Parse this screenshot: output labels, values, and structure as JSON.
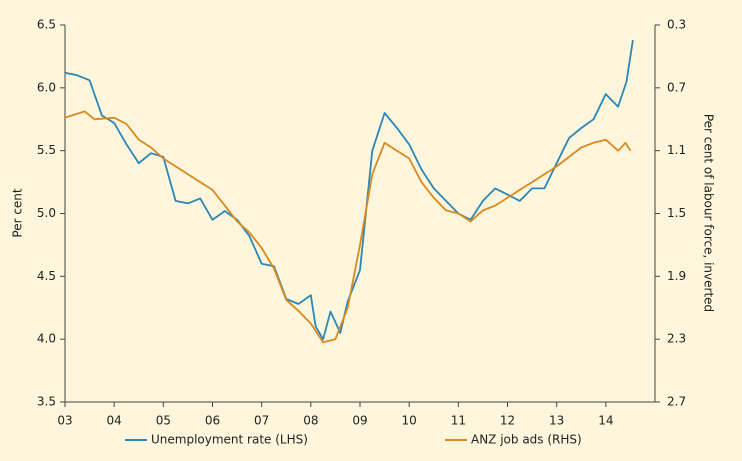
{
  "chart_data": {
    "type": "line",
    "y_label": "Per cent",
    "y2_label": "Per cent of labour force, inverted",
    "xlim": [
      2003,
      2015
    ],
    "xticks": [
      {
        "value": 2003,
        "label": "03"
      },
      {
        "value": 2004,
        "label": "04"
      },
      {
        "value": 2005,
        "label": "05"
      },
      {
        "value": 2006,
        "label": "06"
      },
      {
        "value": 2007,
        "label": "07"
      },
      {
        "value": 2008,
        "label": "08"
      },
      {
        "value": 2009,
        "label": "09"
      },
      {
        "value": 2010,
        "label": "10"
      },
      {
        "value": 2011,
        "label": "11"
      },
      {
        "value": 2012,
        "label": "12"
      },
      {
        "value": 2013,
        "label": "13"
      },
      {
        "value": 2014,
        "label": "14"
      }
    ],
    "ylim": [
      3.5,
      6.5
    ],
    "yticks": [
      3.5,
      {
        "value": 4,
        "label": "4.0"
      },
      4.5,
      {
        "value": 5,
        "label": "5.0"
      },
      5.5,
      {
        "value": 6,
        "label": "6.0"
      },
      6.5
    ],
    "y2lim": [
      2.7,
      0.3
    ],
    "y2ticks": [
      2.7,
      2.3,
      1.9,
      1.5,
      1.1,
      0.7,
      0.3
    ],
    "series": [
      {
        "name": "Unemployment rate (LHS)",
        "color": "#2a87b8",
        "x": [
          2003.0,
          2003.25,
          2003.5,
          2003.75,
          2004.0,
          2004.25,
          2004.5,
          2004.75,
          2005.0,
          2005.25,
          2005.5,
          2005.75,
          2006.0,
          2006.25,
          2006.5,
          2006.75,
          2007.0,
          2007.25,
          2007.5,
          2007.75,
          2008.0,
          2008.1,
          2008.25,
          2008.4,
          2008.6,
          2008.75,
          2009.0,
          2009.25,
          2009.5,
          2009.75,
          2010.0,
          2010.25,
          2010.5,
          2010.75,
          2011.0,
          2011.25,
          2011.5,
          2011.75,
          2012.0,
          2012.25,
          2012.5,
          2012.75,
          2013.0,
          2013.25,
          2013.5,
          2013.75,
          2014.0,
          2014.25,
          2014.42,
          2014.55
        ],
        "values": [
          6.12,
          6.1,
          6.06,
          5.78,
          5.72,
          5.55,
          5.4,
          5.48,
          5.45,
          5.1,
          5.08,
          5.12,
          4.95,
          5.02,
          4.95,
          4.82,
          4.6,
          4.58,
          4.32,
          4.28,
          4.35,
          4.1,
          4.0,
          4.22,
          4.05,
          4.3,
          4.55,
          5.5,
          5.8,
          5.68,
          5.55,
          5.35,
          5.2,
          5.1,
          5.0,
          4.95,
          5.1,
          5.2,
          5.15,
          5.1,
          5.2,
          5.2,
          5.4,
          5.6,
          5.68,
          5.75,
          5.95,
          5.85,
          6.05,
          6.38
        ]
      },
      {
        "name": "ANZ job ads (RHS)",
        "color": "#d98a1c",
        "axis": "y2",
        "x": [
          2003.0,
          2003.4,
          2003.6,
          2004.0,
          2004.25,
          2004.5,
          2004.75,
          2005.0,
          2005.25,
          2005.5,
          2005.75,
          2006.0,
          2006.25,
          2006.5,
          2006.75,
          2007.0,
          2007.25,
          2007.5,
          2007.75,
          2008.0,
          2008.25,
          2008.5,
          2008.75,
          2009.0,
          2009.25,
          2009.5,
          2009.75,
          2010.0,
          2010.25,
          2010.5,
          2010.75,
          2011.0,
          2011.25,
          2011.5,
          2011.75,
          2012.0,
          2012.25,
          2012.5,
          2012.75,
          2013.0,
          2013.5,
          2013.75,
          2014.0,
          2014.25,
          2014.4,
          2014.5
        ],
        "values": [
          0.89,
          0.85,
          0.9,
          0.89,
          0.93,
          1.03,
          1.08,
          1.15,
          1.2,
          1.25,
          1.3,
          1.35,
          1.45,
          1.55,
          1.62,
          1.72,
          1.85,
          2.05,
          2.12,
          2.2,
          2.32,
          2.3,
          2.1,
          1.7,
          1.25,
          1.05,
          1.1,
          1.15,
          1.3,
          1.4,
          1.48,
          1.5,
          1.55,
          1.48,
          1.45,
          1.4,
          1.35,
          1.3,
          1.25,
          1.2,
          1.08,
          1.05,
          1.03,
          1.1,
          1.05,
          1.1
        ]
      }
    ]
  }
}
